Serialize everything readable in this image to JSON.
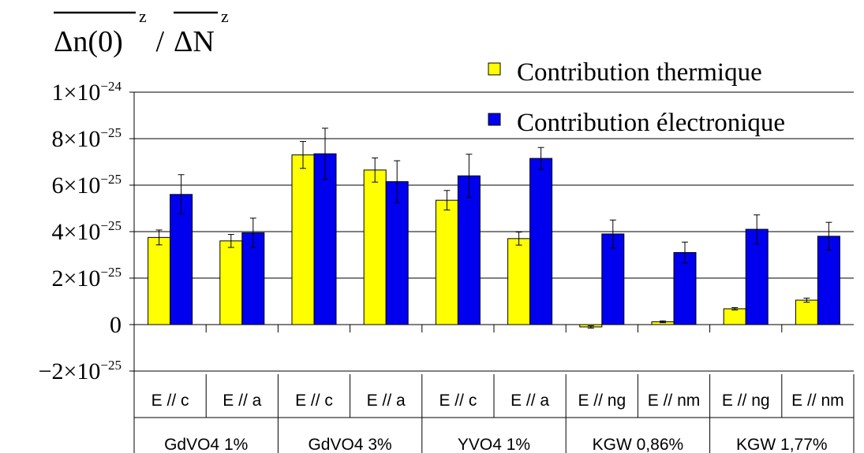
{
  "chart_data": {
    "type": "bar",
    "title_parts": {
      "numerator": "Δn(0)",
      "separator": " / ",
      "denominator": "ΔN",
      "superscript": "z"
    },
    "ylim": [
      -2.5e-25,
      1e-24
    ],
    "y_ticks": [
      {
        "value": -2e-25,
        "mantissa": "−2×10",
        "exponent": "−25"
      },
      {
        "value": 0,
        "mantissa": "0",
        "exponent": ""
      },
      {
        "value": 2e-25,
        "mantissa": "2×10",
        "exponent": "−25"
      },
      {
        "value": 4e-25,
        "mantissa": "4×10",
        "exponent": "−25"
      },
      {
        "value": 6e-25,
        "mantissa": "6×10",
        "exponent": "−25"
      },
      {
        "value": 8e-25,
        "mantissa": "8×10",
        "exponent": "−25"
      },
      {
        "value": 1e-24,
        "mantissa": "1×10",
        "exponent": "−24"
      }
    ],
    "gridlines": [
      -2e-25,
      2e-25,
      4e-25,
      6e-25,
      8e-25,
      1e-24
    ],
    "categories": [
      "E // c",
      "E // a",
      "E // c",
      "E // a",
      "E // c",
      "E // a",
      "E // ng",
      "E // nm",
      "E // ng",
      "E // nm"
    ],
    "groups": [
      "GdVO4 1%",
      "GdVO4 3%",
      "YVO4 1%",
      "KGW 0,86%",
      "KGW 1,77%"
    ],
    "legend_position": "top-right",
    "series": [
      {
        "name": "Contribution thermique",
        "color": "#ffff00",
        "values": [
          3.75e-25,
          3.6e-25,
          7.3e-25,
          6.65e-25,
          5.35e-25,
          3.7e-25,
          -1e-26,
          1.2e-26,
          6.8e-26,
          1.05e-25
        ],
        "errors": [
          3.2e-26,
          2.8e-26,
          5.8e-26,
          5.2e-26,
          4.2e-26,
          2.8e-26,
          5e-27,
          4e-27,
          5e-27,
          9e-27
        ]
      },
      {
        "name": "Contribution électronique",
        "color": "#0000ee",
        "values": [
          5.6e-25,
          3.95e-25,
          7.35e-25,
          6.15e-25,
          6.4e-25,
          7.15e-25,
          3.9e-25,
          3.1e-25,
          4.1e-25,
          3.8e-25
        ],
        "errors": [
          8.5e-26,
          6.3e-26,
          1.1e-25,
          9e-26,
          9.3e-26,
          4.7e-26,
          6e-26,
          4.5e-26,
          6.2e-26,
          6e-26
        ]
      }
    ]
  }
}
